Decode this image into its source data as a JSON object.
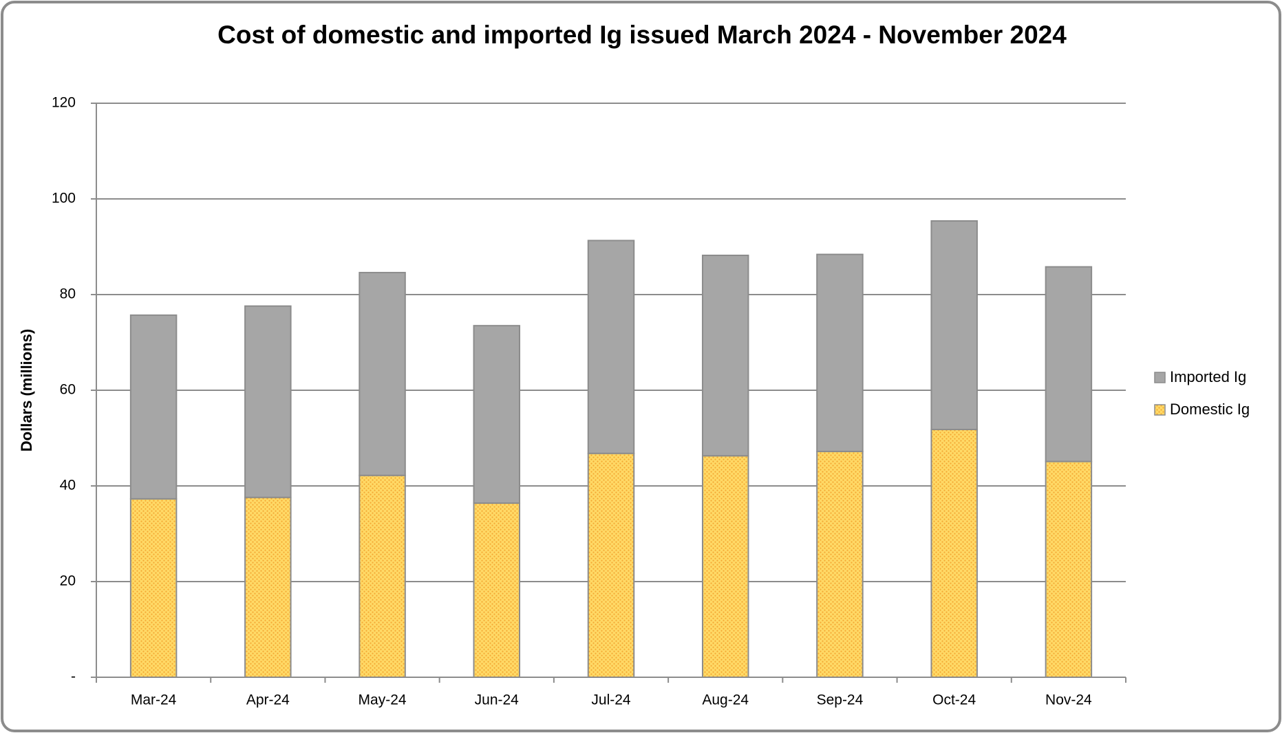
{
  "chart_data": {
    "type": "stacked_bar",
    "title": "Cost of domestic and imported Ig issued March 2024 - November 2024",
    "y_label": "Dollars (millions)",
    "categories": [
      "Mar-24",
      "Apr-24",
      "May-24",
      "Jun-24",
      "Jul-24",
      "Aug-24",
      "Sep-24",
      "Oct-24",
      "Nov-24"
    ],
    "series": [
      {
        "name": "Domestic Ig",
        "color": "#ffc94d",
        "values": [
          37.3,
          37.6,
          42.2,
          36.4,
          46.8,
          46.3,
          47.2,
          51.8,
          45.1
        ]
      },
      {
        "name": "Imported Ig",
        "color": "#a6a6a6",
        "values": [
          38.4,
          40.0,
          42.4,
          37.1,
          44.5,
          41.9,
          41.2,
          43.6,
          40.7
        ]
      }
    ],
    "ylim": [
      0,
      120
    ],
    "yticks": [
      {
        "value": 0,
        "label": "-"
      },
      20,
      40,
      60,
      80,
      100,
      120
    ],
    "grid": true,
    "legend": "right"
  }
}
